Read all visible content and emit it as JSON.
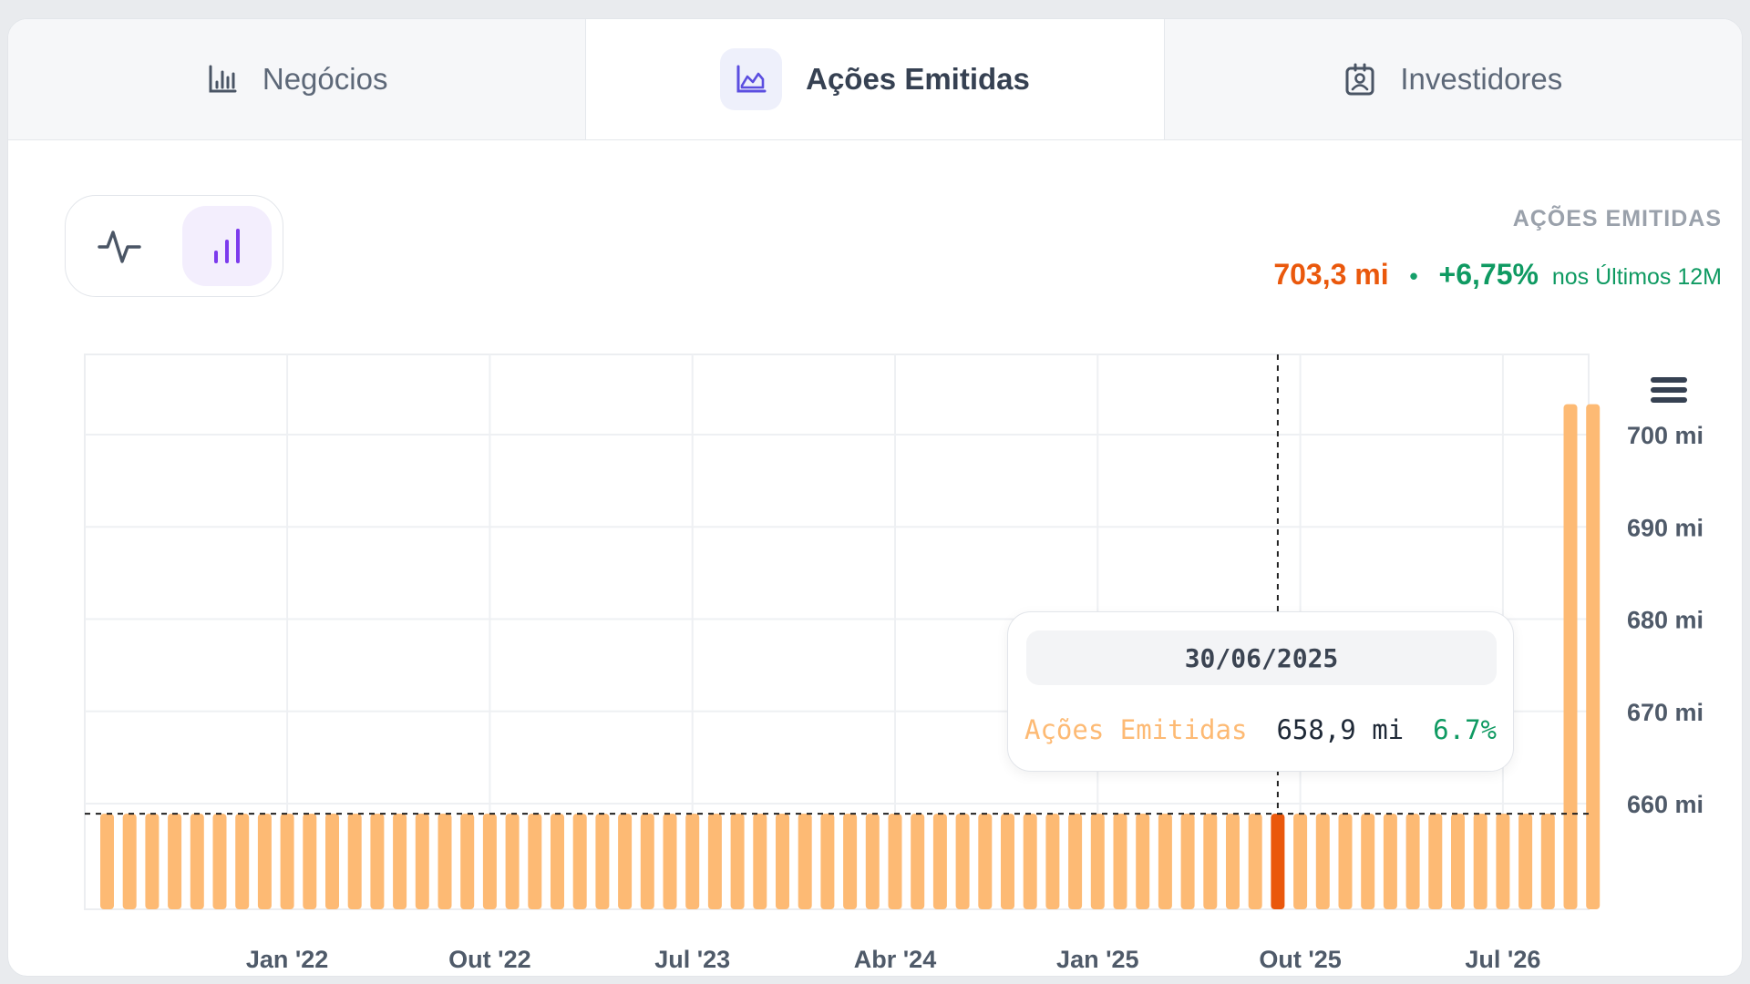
{
  "tabs": [
    {
      "label": "Negócios",
      "icon": "bar-chart-icon",
      "active": false
    },
    {
      "label": "Ações Emitidas",
      "icon": "area-chart-icon",
      "active": true
    },
    {
      "label": "Investidores",
      "icon": "badge-icon",
      "active": false
    }
  ],
  "chart_toggle": {
    "options": [
      "line-chart-icon",
      "bar-chart-icon"
    ],
    "selected": "bar-chart-icon"
  },
  "summary": {
    "title": "AÇÕES EMITIDAS",
    "value": "703,3 mi",
    "separator": "•",
    "change": "+6,75%",
    "period": "nos Últimos 12M"
  },
  "colors": {
    "bar": "#fdba74",
    "bar_highlight": "#ea580c",
    "positive": "#0f9a62",
    "active_icon": "#7c3aed"
  },
  "chart_data": {
    "type": "bar",
    "series": [
      {
        "name": "Ações Emitidas",
        "color": "#fdba74"
      }
    ],
    "bar_count": 67,
    "baseline_value": 658.9,
    "last_values": [
      703.3,
      703.3
    ],
    "highlight_index": 52,
    "ylim": [
      650,
      710
    ],
    "yticks": [
      {
        "value": 660,
        "label": "660 mi"
      },
      {
        "value": 670,
        "label": "670 mi"
      },
      {
        "value": 680,
        "label": "680 mi"
      },
      {
        "value": 690,
        "label": "690 mi"
      },
      {
        "value": 700,
        "label": "700 mi"
      }
    ],
    "xticks": [
      "Jan '22",
      "Out '22",
      "Jul '23",
      "Abr '24",
      "Jan '25",
      "Out '25",
      "Jul '26"
    ],
    "xtick_bar_index": [
      8,
      17,
      26,
      35,
      44,
      53,
      62
    ],
    "grid": true,
    "y_axis_position": "right"
  },
  "tooltip": {
    "date": "30/06/2025",
    "series": "Ações Emitidas",
    "value": "658,9 mi",
    "change": "6.7%"
  }
}
